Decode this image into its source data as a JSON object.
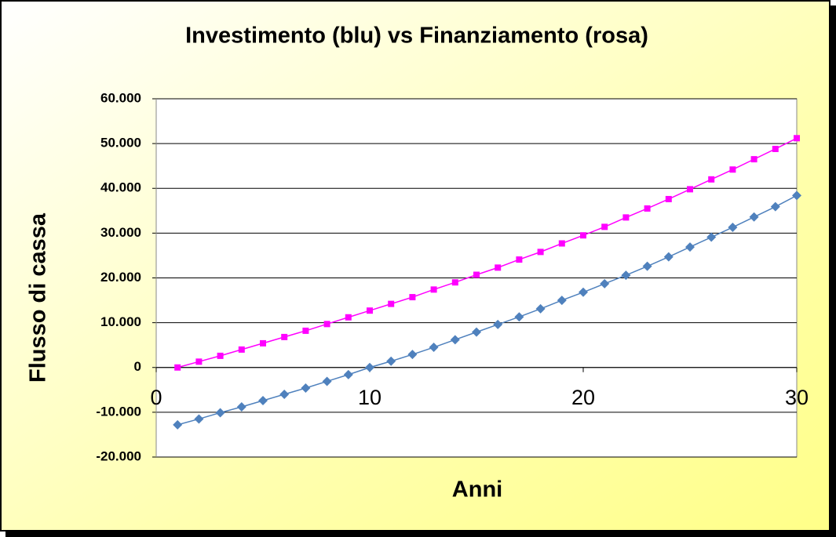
{
  "chart_data": {
    "type": "line",
    "title": "Investimento (blu) vs Finanziamento (rosa)",
    "xlabel": "Anni",
    "ylabel": "Flusso di cassa",
    "x": [
      1,
      2,
      3,
      4,
      5,
      6,
      7,
      8,
      9,
      10,
      11,
      12,
      13,
      14,
      15,
      16,
      17,
      18,
      19,
      20,
      21,
      22,
      23,
      24,
      25,
      26,
      27,
      28,
      29,
      30
    ],
    "series": [
      {
        "color": "#4f81bd",
        "marker": "diamond",
        "values": [
          -12800,
          -11500,
          -10100,
          -8800,
          -7400,
          -6000,
          -4600,
          -3100,
          -1600,
          0,
          1400,
          2900,
          4500,
          6200,
          7900,
          9600,
          11300,
          13100,
          15000,
          16800,
          18700,
          20600,
          22600,
          24700,
          26900,
          29100,
          31300,
          33600,
          35900,
          38400
        ]
      },
      {
        "color": "#ff00ff",
        "marker": "square",
        "values": [
          0,
          1300,
          2600,
          4000,
          5400,
          6800,
          8200,
          9700,
          11200,
          12700,
          14200,
          15700,
          17400,
          19000,
          20700,
          22300,
          24100,
          25800,
          27700,
          29500,
          31400,
          33500,
          35500,
          37600,
          39800,
          42000,
          44200,
          46500,
          48800,
          51200
        ]
      }
    ],
    "xlim": [
      0,
      30
    ],
    "xticks": [
      0,
      10,
      20,
      30
    ],
    "ylim": [
      -20000,
      60000
    ],
    "yticks": [
      {
        "value": -20000,
        "label": "-20.000"
      },
      {
        "value": -10000,
        "label": "-10.000"
      },
      0,
      {
        "value": 10000,
        "label": "10.000"
      },
      {
        "value": 20000,
        "label": "20.000"
      },
      {
        "value": 30000,
        "label": "30.000"
      },
      {
        "value": 40000,
        "label": "40.000"
      },
      {
        "value": 50000,
        "label": "50.000"
      },
      {
        "value": 60000,
        "label": "60.000"
      }
    ],
    "grid": true
  }
}
